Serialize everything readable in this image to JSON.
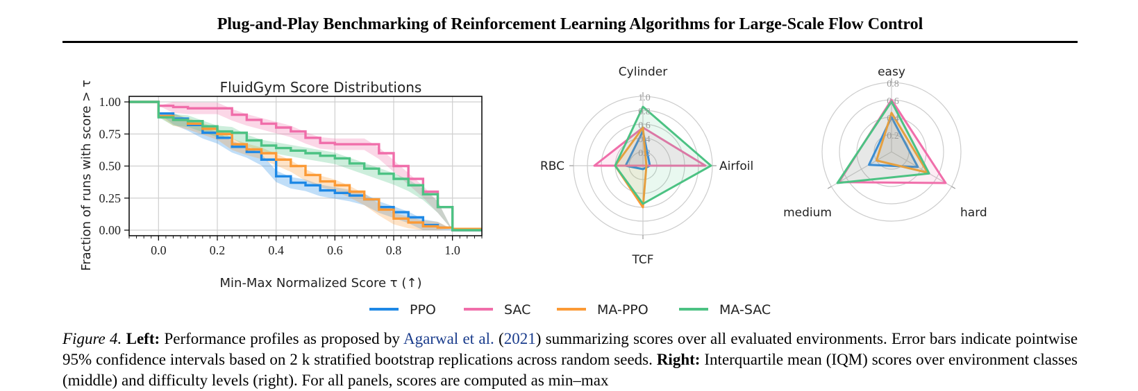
{
  "header": {
    "title": "Plug-and-Play Benchmarking of Reinforcement Learning Algorithms for Large-Scale Flow Control"
  },
  "colors": {
    "PPO": "#1e88e5",
    "SAC": "#f06eaa",
    "MA-PPO": "#fb9a36",
    "MA-SAC": "#4cc283"
  },
  "chart_data": [
    {
      "type": "line",
      "title": "FluidGym Score Distributions",
      "xlabel": "Min-Max Normalized Score τ (↑)",
      "ylabel": "Fraction of runs with score > τ",
      "xlim": [
        -0.1,
        1.1
      ],
      "ylim": [
        0.0,
        1.0
      ],
      "xticks": [
        "0.0",
        "0.2",
        "0.4",
        "0.6",
        "0.8",
        "1.0"
      ],
      "yticks": [
        "0.00",
        "0.25",
        "0.50",
        "0.75",
        "1.00"
      ],
      "grid": true,
      "legend": "bottom",
      "series": [
        {
          "name": "PPO",
          "x": [
            -0.1,
            0.0,
            0.0,
            0.05,
            0.1,
            0.15,
            0.2,
            0.25,
            0.3,
            0.35,
            0.4,
            0.45,
            0.5,
            0.55,
            0.6,
            0.65,
            0.7,
            0.75,
            0.8,
            0.85,
            0.9,
            0.95,
            1.0,
            1.1
          ],
          "y": [
            1.0,
            1.0,
            0.91,
            0.87,
            0.82,
            0.76,
            0.72,
            0.65,
            0.61,
            0.55,
            0.42,
            0.37,
            0.35,
            0.31,
            0.29,
            0.27,
            0.24,
            0.18,
            0.14,
            0.1,
            0.04,
            0.02,
            0.0,
            0.0
          ]
        },
        {
          "name": "SAC",
          "x": [
            -0.1,
            0.0,
            0.0,
            0.05,
            0.1,
            0.15,
            0.2,
            0.25,
            0.3,
            0.35,
            0.4,
            0.45,
            0.5,
            0.55,
            0.6,
            0.65,
            0.7,
            0.75,
            0.8,
            0.85,
            0.9,
            0.95,
            1.0,
            1.1
          ],
          "y": [
            1.0,
            1.0,
            0.97,
            0.96,
            0.95,
            0.95,
            0.95,
            0.9,
            0.86,
            0.83,
            0.8,
            0.77,
            0.72,
            0.68,
            0.67,
            0.67,
            0.67,
            0.6,
            0.5,
            0.4,
            0.3,
            0.18,
            0.0,
            0.0
          ]
        },
        {
          "name": "MA-PPO",
          "x": [
            -0.1,
            0.0,
            0.0,
            0.05,
            0.1,
            0.15,
            0.2,
            0.25,
            0.3,
            0.35,
            0.4,
            0.45,
            0.5,
            0.55,
            0.6,
            0.65,
            0.7,
            0.75,
            0.8,
            0.85,
            0.9,
            0.95,
            1.0,
            1.1
          ],
          "y": [
            1.0,
            1.0,
            0.89,
            0.86,
            0.83,
            0.79,
            0.75,
            0.67,
            0.63,
            0.6,
            0.55,
            0.5,
            0.43,
            0.38,
            0.35,
            0.3,
            0.24,
            0.16,
            0.09,
            0.06,
            0.03,
            0.02,
            0.01,
            0.01
          ]
        },
        {
          "name": "MA-SAC",
          "x": [
            -0.1,
            0.0,
            0.0,
            0.05,
            0.1,
            0.15,
            0.2,
            0.25,
            0.3,
            0.35,
            0.4,
            0.45,
            0.5,
            0.55,
            0.6,
            0.65,
            0.7,
            0.75,
            0.8,
            0.85,
            0.9,
            0.95,
            1.0,
            1.1
          ],
          "y": [
            1.0,
            1.0,
            0.88,
            0.86,
            0.85,
            0.81,
            0.77,
            0.76,
            0.7,
            0.66,
            0.64,
            0.62,
            0.6,
            0.58,
            0.56,
            0.52,
            0.48,
            0.44,
            0.4,
            0.35,
            0.28,
            0.18,
            0.0,
            0.0
          ]
        }
      ]
    },
    {
      "type": "radar",
      "axes": [
        "Cylinder",
        "Airfoil",
        "TCF",
        "RBC"
      ],
      "rticks": [
        "0.2",
        "0.4",
        "0.6",
        "0.8",
        "1.0"
      ],
      "rlim": [
        0,
        1.0
      ],
      "series": [
        {
          "name": "PPO",
          "values": [
            0.5,
            0.1,
            0.05,
            0.25
          ]
        },
        {
          "name": "SAC",
          "values": [
            0.55,
            0.9,
            0.0,
            0.7
          ]
        },
        {
          "name": "MA-PPO",
          "values": [
            0.55,
            0.05,
            0.6,
            0.4
          ]
        },
        {
          "name": "MA-SAC",
          "values": [
            0.85,
            0.98,
            0.55,
            0.4
          ]
        }
      ]
    },
    {
      "type": "radar",
      "axes": [
        "easy",
        "hard",
        "medium"
      ],
      "rticks": [
        "0.2",
        "0.4",
        "0.6",
        "0.8"
      ],
      "rlim": [
        0,
        0.8
      ],
      "series": [
        {
          "name": "PPO",
          "values": [
            0.4,
            0.35,
            0.3
          ]
        },
        {
          "name": "SAC",
          "values": [
            0.6,
            0.72,
            0.7
          ]
        },
        {
          "name": "MA-PPO",
          "values": [
            0.45,
            0.48,
            0.2
          ]
        },
        {
          "name": "MA-SAC",
          "values": [
            0.58,
            0.5,
            0.72
          ]
        }
      ]
    }
  ],
  "caption": {
    "label": "Figure 4.",
    "left_label": "Left:",
    "left_text": "Performance profiles as proposed by",
    "cite_author": "Agarwal et al.",
    "cite_year_open": "(",
    "cite_year": "2021",
    "cite_year_close": ")",
    "left_text2": "summarizing scores over all evaluated environments. Error bars indicate pointwise 95% confidence intervals based on 2 k stratified bootstrap replications across random seeds.",
    "right_label": "Right:",
    "right_text": "Interquartile mean (IQM) scores over environment classes (middle) and difficulty levels (right). For all panels, scores are computed as min–max"
  }
}
